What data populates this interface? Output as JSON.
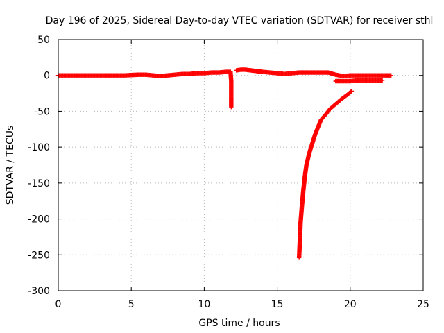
{
  "chart_data": {
    "type": "scatter",
    "title": "Day 196 of 2025, Sidereal Day-to-day VTEC variation (SDTVAR) for receiver sthl",
    "xlabel": "GPS time / hours",
    "ylabel": "SDTVAR / TECUs",
    "xlim": [
      0,
      25
    ],
    "ylim": [
      -300,
      50
    ],
    "xticks": [
      "0",
      "5",
      "10",
      "15",
      "20",
      "25"
    ],
    "yticks": [
      "50",
      "0",
      "-50",
      "-100",
      "-150",
      "-200",
      "-250",
      "-300"
    ],
    "grid": true,
    "legend": "none",
    "marker": "plus",
    "color": "#ff0000",
    "series": [
      {
        "name": "",
        "points": [
          [
            0.0,
            0
          ],
          [
            0.5,
            0
          ],
          [
            1.0,
            0
          ],
          [
            1.5,
            0
          ],
          [
            2.0,
            0
          ],
          [
            2.5,
            0
          ],
          [
            3.0,
            0
          ],
          [
            3.5,
            0
          ],
          [
            4.0,
            0
          ],
          [
            4.5,
            0
          ],
          [
            5.0,
            0.5
          ],
          [
            5.5,
            1
          ],
          [
            6.0,
            1
          ],
          [
            6.5,
            0
          ],
          [
            7.0,
            -1
          ],
          [
            7.5,
            0
          ],
          [
            8.0,
            1
          ],
          [
            8.5,
            2
          ],
          [
            9.0,
            2
          ],
          [
            9.5,
            3
          ],
          [
            10.0,
            3
          ],
          [
            10.5,
            4
          ],
          [
            11.0,
            4
          ],
          [
            11.5,
            5
          ],
          [
            11.8,
            5
          ],
          [
            11.85,
            -8
          ],
          [
            11.85,
            -44
          ],
          [
            12.2,
            7
          ],
          [
            12.5,
            8
          ],
          [
            12.8,
            8
          ],
          [
            13.2,
            7
          ],
          [
            13.6,
            6
          ],
          [
            14.0,
            5
          ],
          [
            14.5,
            4
          ],
          [
            15.0,
            3
          ],
          [
            15.5,
            2
          ],
          [
            16.0,
            3
          ],
          [
            16.5,
            4
          ],
          [
            17.0,
            4
          ],
          [
            17.5,
            4
          ],
          [
            18.0,
            4
          ],
          [
            18.5,
            4
          ],
          [
            19.0,
            1
          ],
          [
            19.5,
            -1
          ],
          [
            20.0,
            0
          ],
          [
            20.5,
            0
          ],
          [
            21.0,
            0
          ],
          [
            21.5,
            0
          ],
          [
            22.0,
            0
          ],
          [
            22.5,
            0
          ],
          [
            22.8,
            0
          ],
          [
            19.0,
            -8
          ],
          [
            19.5,
            -8
          ],
          [
            20.0,
            -8
          ],
          [
            20.5,
            -7
          ],
          [
            21.0,
            -7
          ],
          [
            21.5,
            -7
          ],
          [
            22.0,
            -7
          ],
          [
            22.2,
            -7
          ],
          [
            16.5,
            -254
          ],
          [
            16.55,
            -230
          ],
          [
            16.6,
            -205
          ],
          [
            16.7,
            -180
          ],
          [
            16.8,
            -158
          ],
          [
            16.9,
            -140
          ],
          [
            17.0,
            -125
          ],
          [
            17.2,
            -108
          ],
          [
            17.4,
            -95
          ],
          [
            17.6,
            -82
          ],
          [
            17.8,
            -72
          ],
          [
            18.0,
            -62
          ],
          [
            18.3,
            -55
          ],
          [
            18.6,
            -47
          ],
          [
            19.0,
            -40
          ],
          [
            19.4,
            -33
          ],
          [
            19.8,
            -27
          ],
          [
            20.1,
            -22
          ]
        ]
      }
    ]
  }
}
